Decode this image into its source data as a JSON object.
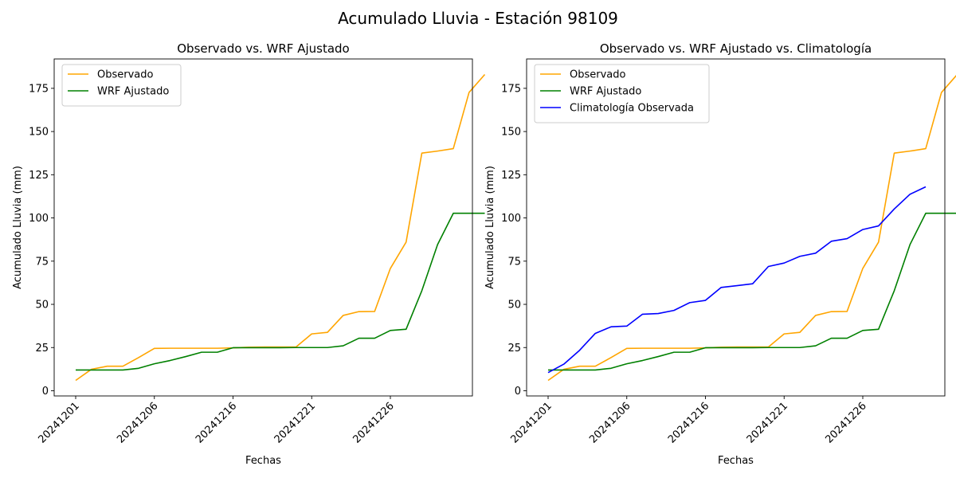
{
  "figure": {
    "title": "Acumulado Lluvia - Estación 98109"
  },
  "chart_data": [
    {
      "type": "line",
      "title": "Observado vs. WRF Ajustado",
      "xlabel": "Fechas",
      "ylabel": "Acumulado Lluvia (mm)",
      "x_tick_labels": [
        "20241201",
        "20241206",
        "20241216",
        "20241221",
        "20241226"
      ],
      "y_ticks": [
        0,
        25,
        50,
        75,
        100,
        125,
        150,
        175
      ],
      "ylim": [
        -3,
        192
      ],
      "grid": false,
      "legend_position": "upper left",
      "series": [
        {
          "name": "Observado",
          "color": "#ffa500",
          "values": [
            6.0,
            12.4,
            14.2,
            14.2,
            19.2,
            24.5,
            24.6,
            24.6,
            24.6,
            24.6,
            24.8,
            25.2,
            25.3,
            25.3,
            25.3,
            32.9,
            33.8,
            43.6,
            45.8,
            45.9,
            70.8,
            86.0,
            137.5,
            138.7,
            140.1,
            172.6,
            183.0
          ]
        },
        {
          "name": "WRF Ajustado",
          "color": "#008000",
          "values": [
            12.0,
            12.0,
            12.0,
            12.0,
            13.0,
            15.6,
            17.5,
            19.8,
            22.3,
            22.3,
            24.9,
            24.9,
            24.9,
            24.9,
            25.0,
            25.0,
            25.0,
            26.0,
            30.4,
            30.4,
            34.9,
            35.6,
            57.9,
            84.6,
            102.7,
            102.7,
            102.7
          ]
        }
      ]
    },
    {
      "type": "line",
      "title": "Observado vs. WRF Ajustado vs. Climatología",
      "xlabel": "Fechas",
      "ylabel": "Acumulado Lluvia (mm)",
      "x_tick_labels": [
        "20241201",
        "20241206",
        "20241216",
        "20241221",
        "20241226"
      ],
      "y_ticks": [
        0,
        25,
        50,
        75,
        100,
        125,
        150,
        175
      ],
      "ylim": [
        -3,
        192
      ],
      "grid": false,
      "legend_position": "upper left",
      "series": [
        {
          "name": "Observado",
          "color": "#ffa500",
          "values": [
            6.0,
            12.4,
            14.2,
            14.2,
            19.2,
            24.5,
            24.6,
            24.6,
            24.6,
            24.6,
            24.8,
            25.2,
            25.3,
            25.3,
            25.3,
            32.9,
            33.8,
            43.6,
            45.8,
            45.9,
            70.8,
            86.0,
            137.5,
            138.7,
            140.1,
            172.6,
            183.0
          ]
        },
        {
          "name": "WRF Ajustado",
          "color": "#008000",
          "values": [
            12.0,
            12.0,
            12.0,
            12.0,
            13.0,
            15.6,
            17.5,
            19.8,
            22.3,
            22.3,
            24.9,
            24.9,
            24.9,
            24.9,
            25.0,
            25.0,
            25.0,
            26.0,
            30.4,
            30.4,
            34.9,
            35.6,
            57.9,
            84.6,
            102.7,
            102.7,
            102.7
          ]
        },
        {
          "name": "Climatología Observada",
          "color": "#0000ff",
          "values": [
            10.5,
            15.4,
            23.4,
            33.2,
            37.0,
            37.4,
            44.3,
            44.7,
            46.5,
            51.0,
            52.3,
            59.8,
            60.8,
            61.9,
            71.9,
            73.9,
            77.8,
            79.6,
            86.5,
            88.0,
            93.3,
            95.4,
            105.2,
            113.7,
            118.0
          ]
        }
      ]
    }
  ]
}
